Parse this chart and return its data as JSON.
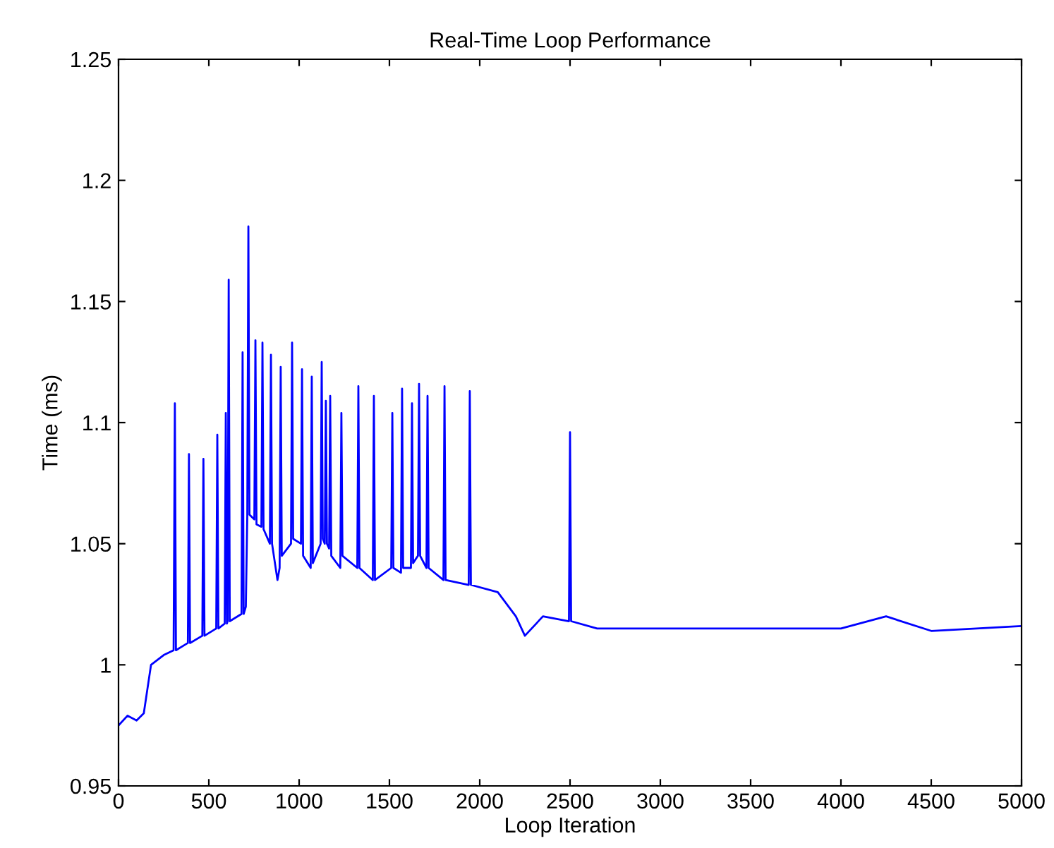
{
  "chart_data": {
    "type": "line",
    "title": "Real-Time Loop Performance",
    "xlabel": "Loop Iteration",
    "ylabel": "Time (ms)",
    "xlim": [
      0,
      5000
    ],
    "ylim": [
      0.95,
      1.25
    ],
    "xticks": [
      0,
      500,
      1000,
      1500,
      2000,
      2500,
      3000,
      3500,
      4000,
      4500,
      5000
    ],
    "yticks": [
      0.95,
      1,
      1.05,
      1.1,
      1.15,
      1.2,
      1.25
    ],
    "grid": false,
    "marker": "none",
    "line_style": "solid",
    "series": [
      {
        "color": "#0000ff",
        "x": [
          0,
          50,
          100,
          140,
          160,
          180,
          250,
          305,
          312,
          318,
          384,
          390,
          396,
          464,
          470,
          476,
          541,
          547,
          553,
          588,
          594,
          600,
          604,
          610,
          616,
          681,
          687,
          693,
          705,
          713,
          719,
          725,
          752,
          758,
          764,
          791,
          797,
          803,
          838,
          844,
          850,
          880,
          892,
          898,
          904,
          955,
          961,
          967,
          1010,
          1016,
          1022,
          1064,
          1070,
          1076,
          1119,
          1125,
          1131,
          1142,
          1148,
          1154,
          1166,
          1172,
          1178,
          1228,
          1234,
          1240,
          1322,
          1328,
          1334,
          1408,
          1414,
          1420,
          1510,
          1516,
          1522,
          1564,
          1570,
          1576,
          1619,
          1625,
          1631,
          1658,
          1664,
          1670,
          1705,
          1711,
          1717,
          1799,
          1805,
          1811,
          1939,
          1945,
          1951,
          2100,
          2200,
          2250,
          2350,
          2494,
          2500,
          2506,
          2650,
          3000,
          3500,
          4000,
          4250,
          4500,
          5000
        ],
        "values": [
          0.975,
          0.979,
          0.977,
          0.98,
          0.99,
          1.0,
          1.004,
          1.006,
          1.108,
          1.006,
          1.009,
          1.087,
          1.009,
          1.012,
          1.085,
          1.012,
          1.015,
          1.095,
          1.015,
          1.017,
          1.104,
          1.017,
          1.018,
          1.159,
          1.018,
          1.021,
          1.129,
          1.021,
          1.024,
          1.062,
          1.181,
          1.062,
          1.06,
          1.134,
          1.058,
          1.057,
          1.133,
          1.056,
          1.05,
          1.128,
          1.05,
          1.035,
          1.04,
          1.123,
          1.045,
          1.05,
          1.133,
          1.052,
          1.05,
          1.122,
          1.045,
          1.04,
          1.119,
          1.042,
          1.05,
          1.125,
          1.052,
          1.05,
          1.109,
          1.05,
          1.048,
          1.111,
          1.045,
          1.04,
          1.104,
          1.045,
          1.04,
          1.115,
          1.04,
          1.035,
          1.111,
          1.035,
          1.04,
          1.104,
          1.04,
          1.038,
          1.114,
          1.04,
          1.04,
          1.108,
          1.042,
          1.045,
          1.116,
          1.045,
          1.04,
          1.111,
          1.04,
          1.035,
          1.115,
          1.035,
          1.033,
          1.113,
          1.033,
          1.03,
          1.02,
          1.012,
          1.02,
          1.018,
          1.096,
          1.018,
          1.015,
          1.015,
          1.015,
          1.015,
          1.02,
          1.014,
          1.016
        ]
      }
    ]
  }
}
